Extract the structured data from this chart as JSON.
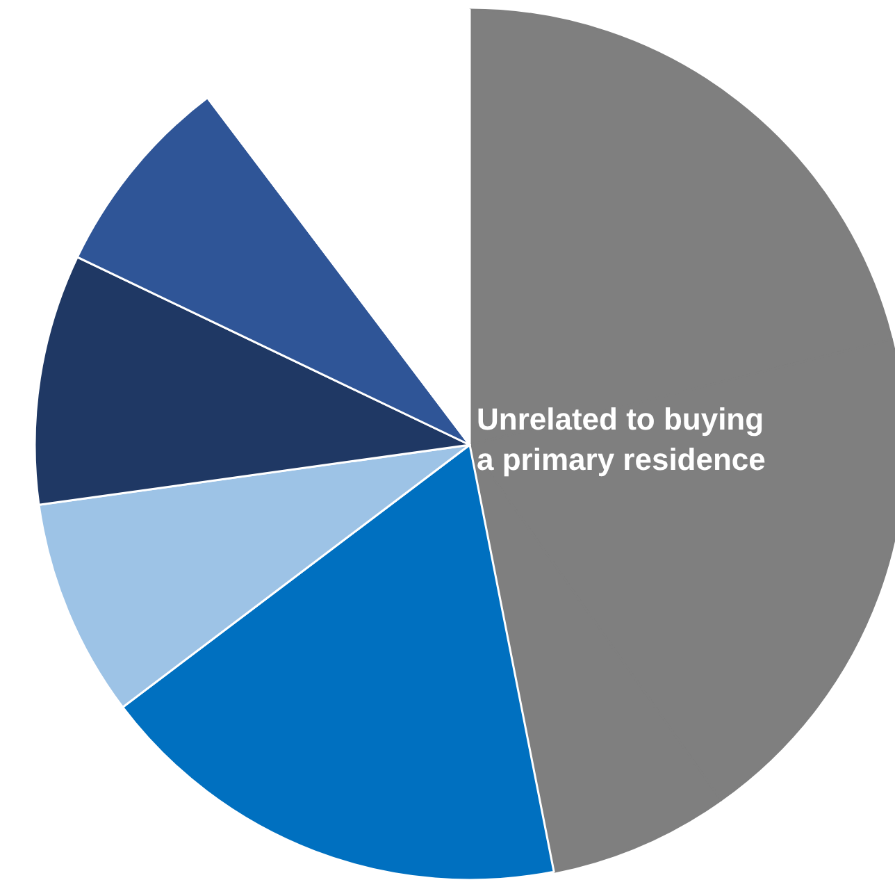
{
  "chart_data": {
    "type": "pie",
    "categories": [
      null,
      null,
      null,
      null,
      null,
      null,
      null,
      null
    ],
    "values": [
      21.1,
      19.1,
      6.7,
      17.8,
      8.1,
      9.3,
      7.6,
      10.3
    ],
    "colors": [
      "#7f7f7f",
      "#7f7f7f",
      "#7f7f7f",
      "#0070c0",
      "#9dc3e6",
      "#1f3864",
      "#2f5597",
      "#ffffff"
    ],
    "annotations": [
      "Unrelated to buying a primary residence"
    ]
  }
}
